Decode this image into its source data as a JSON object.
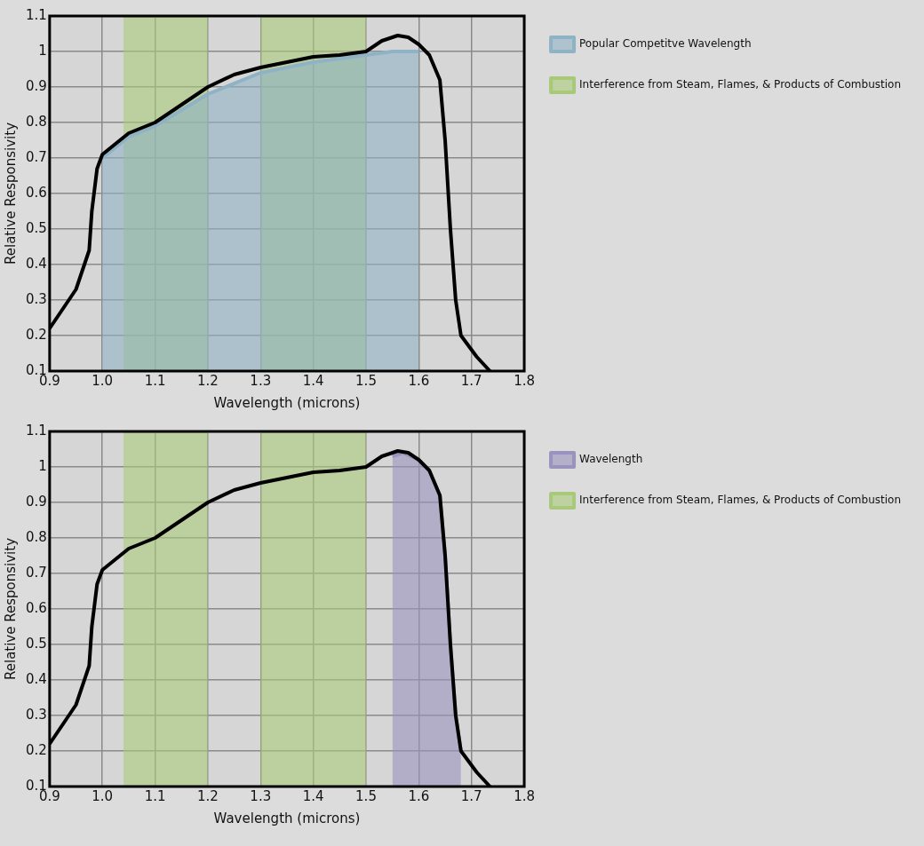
{
  "chart_data": [
    {
      "type": "line",
      "xlabel": "Wavelength (microns)",
      "ylabel": "Relative Responsivity",
      "xlim": [
        0.9,
        1.8
      ],
      "ylim": [
        0.1,
        1.1
      ],
      "xticks": [
        0.9,
        {
          "value": 1,
          "label": "1.0"
        },
        1.1,
        1.2,
        1.3,
        1.4,
        1.5,
        1.6,
        1.7,
        1.8
      ],
      "yticks": [
        0.1,
        0.2,
        0.3,
        0.4,
        0.5,
        0.6,
        0.7,
        0.8,
        0.9,
        1,
        1.1
      ],
      "grid": true,
      "legend": "right",
      "marker": "none",
      "series": [
        {
          "type": "line",
          "color": "#000000",
          "x": [
            0.9,
            0.95,
            0.975,
            0.98,
            0.99,
            1.0,
            1.05,
            1.1,
            1.15,
            1.2,
            1.25,
            1.3,
            1.35,
            1.4,
            1.45,
            1.5,
            1.53,
            1.56,
            1.58,
            1.6,
            1.62,
            1.64,
            1.65,
            1.66,
            1.67,
            1.68,
            1.71,
            1.735
          ],
          "values": [
            0.22,
            0.33,
            0.44,
            0.55,
            0.67,
            0.71,
            0.77,
            0.8,
            0.85,
            0.9,
            0.935,
            0.955,
            0.97,
            0.985,
            0.99,
            1.0,
            1.03,
            1.045,
            1.04,
            1.02,
            0.99,
            0.92,
            0.75,
            0.5,
            0.3,
            0.2,
            0.14,
            0.1
          ]
        },
        {
          "type": "area",
          "name": "Popular Competitve Wavelength",
          "color": "#8fb3c4",
          "x": [
            1.0,
            1.05,
            1.1,
            1.2,
            1.3,
            1.4,
            1.5,
            1.55,
            1.6
          ],
          "values": [
            0.7,
            0.76,
            0.79,
            0.88,
            0.94,
            0.97,
            0.99,
            1.0,
            1.0
          ]
        },
        {
          "type": "area",
          "name": "Interference from Steam, Flames, & Products of Combustion",
          "color": "#a9c97a",
          "x": [
            1.04,
            1.2,
            1.25,
            1.3,
            1.5
          ],
          "values": [
            1.1,
            1.1,
            null,
            1.1,
            1.1
          ]
        }
      ]
    },
    {
      "type": "line",
      "xlabel": "Wavelength (microns)",
      "ylabel": "Relative Responsivity",
      "xlim": [
        0.9,
        1.8
      ],
      "ylim": [
        0.1,
        1.1
      ],
      "xticks": [
        0.9,
        {
          "value": 1,
          "label": "1.0"
        },
        1.1,
        1.2,
        1.3,
        1.4,
        1.5,
        1.6,
        1.7,
        1.8
      ],
      "yticks": [
        0.1,
        0.2,
        0.3,
        0.4,
        0.5,
        0.6,
        0.7,
        0.8,
        0.9,
        1,
        1.1
      ],
      "grid": true,
      "legend": "right",
      "marker": "none",
      "series": [
        {
          "type": "line",
          "color": "#000000",
          "x": [
            0.9,
            0.95,
            0.975,
            0.98,
            0.99,
            1.0,
            1.05,
            1.1,
            1.15,
            1.2,
            1.25,
            1.3,
            1.35,
            1.4,
            1.45,
            1.5,
            1.53,
            1.56,
            1.58,
            1.6,
            1.62,
            1.64,
            1.65,
            1.66,
            1.67,
            1.68,
            1.71,
            1.735
          ],
          "values": [
            0.22,
            0.33,
            0.44,
            0.55,
            0.67,
            0.71,
            0.77,
            0.8,
            0.85,
            0.9,
            0.935,
            0.955,
            0.97,
            0.985,
            0.99,
            1.0,
            1.03,
            1.045,
            1.04,
            1.02,
            0.99,
            0.92,
            0.75,
            0.5,
            0.3,
            0.2,
            0.14,
            0.1
          ]
        },
        {
          "type": "area",
          "name": "Wavelength",
          "color": "#9b93bd",
          "x": [
            1.55,
            1.57,
            1.6,
            1.62,
            1.64,
            1.65,
            1.66,
            1.67,
            1.68
          ],
          "values": [
            1.03,
            1.04,
            1.02,
            0.99,
            0.92,
            0.75,
            0.5,
            0.3,
            0.2
          ]
        },
        {
          "type": "area",
          "name": "Interference from Steam, Flames, & Products of Combustion",
          "color": "#a9c97a",
          "x": [
            1.04,
            1.2,
            1.25,
            1.3,
            1.5
          ],
          "values": [
            1.1,
            1.1,
            null,
            1.1,
            1.1
          ]
        }
      ]
    }
  ]
}
